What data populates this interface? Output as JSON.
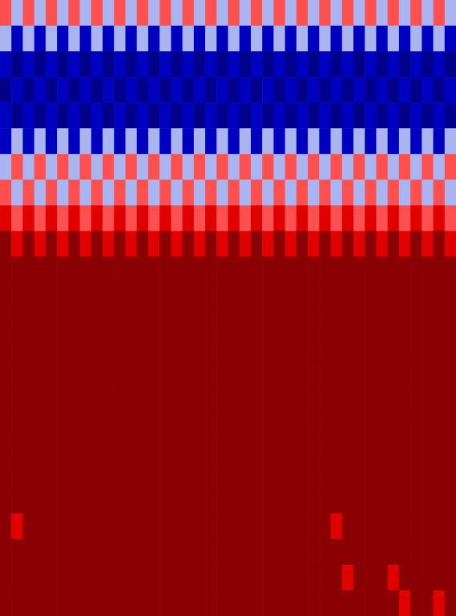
{
  "chart_data": {
    "type": "heatmap",
    "tick_labels": false,
    "levels": [
      -1,
      -0.8,
      -0.5,
      0,
      0.5,
      0.9,
      1
    ],
    "colors": [
      "#00008b",
      "#0000c0",
      "#aab4f0",
      "#ff5050",
      "#e00000",
      "#8b0000"
    ],
    "cells": [
      [
        0.3,
        -0.3,
        0.3,
        -0.3,
        0.3,
        -0.3,
        0.3,
        -0.3,
        0.3,
        -0.3,
        0.3,
        -0.3,
        0.3,
        -0.3,
        0.3,
        -0.3,
        0.3,
        -0.3,
        0.3,
        -0.3,
        0.3,
        -0.3,
        0.3,
        -0.3,
        0.3,
        -0.3,
        0.3,
        -0.3,
        0.3,
        -0.3,
        0.3,
        -0.3,
        0.3,
        -0.3,
        0.3,
        -0.3,
        0.3,
        -0.3,
        0.3,
        -0.3
      ],
      [
        -0.3,
        -0.7,
        -0.3,
        -0.7,
        -0.3,
        -0.7,
        -0.3,
        -0.7,
        -0.3,
        -0.7,
        -0.3,
        -0.7,
        -0.3,
        -0.7,
        -0.3,
        -0.7,
        -0.3,
        -0.7,
        -0.3,
        -0.7,
        -0.3,
        -0.7,
        -0.3,
        -0.7,
        -0.3,
        -0.7,
        -0.3,
        -0.7,
        -0.3,
        -0.7,
        -0.3,
        -0.7,
        -0.3,
        -0.7,
        -0.3,
        -0.7,
        -0.3,
        -0.7,
        -0.3,
        -0.7
      ],
      [
        -0.7,
        -0.9,
        -0.7,
        -0.9,
        -0.7,
        -0.9,
        -0.7,
        -0.9,
        -0.7,
        -0.9,
        -0.7,
        -0.9,
        -0.7,
        -0.9,
        -0.7,
        -0.9,
        -0.7,
        -0.9,
        -0.7,
        -0.9,
        -0.7,
        -0.9,
        -0.7,
        -0.9,
        -0.7,
        -0.9,
        -0.7,
        -0.9,
        -0.7,
        -0.9,
        -0.7,
        -0.9,
        -0.7,
        -0.9,
        -0.7,
        -0.9,
        -0.7,
        -0.9,
        -0.7,
        -0.9
      ],
      [
        -0.9,
        -0.7,
        -0.9,
        -0.7,
        -0.9,
        -0.7,
        -0.9,
        -0.7,
        -0.9,
        -0.7,
        -0.9,
        -0.7,
        -0.9,
        -0.7,
        -0.9,
        -0.7,
        -0.9,
        -0.7,
        -0.9,
        -0.7,
        -0.9,
        -0.7,
        -0.9,
        -0.7,
        -0.9,
        -0.7,
        -0.9,
        -0.7,
        -0.9,
        -0.7,
        -0.9,
        -0.7,
        -0.9,
        -0.7,
        -0.9,
        -0.7,
        -0.9,
        -0.7,
        -0.9,
        -0.7
      ],
      [
        -0.7,
        -0.9,
        -0.7,
        -0.9,
        -0.7,
        -0.9,
        -0.7,
        -0.9,
        -0.7,
        -0.9,
        -0.7,
        -0.9,
        -0.7,
        -0.9,
        -0.7,
        -0.9,
        -0.7,
        -0.9,
        -0.7,
        -0.9,
        -0.7,
        -0.9,
        -0.7,
        -0.9,
        -0.7,
        -0.9,
        -0.7,
        -0.9,
        -0.7,
        -0.9,
        -0.7,
        -0.9,
        -0.7,
        -0.9,
        -0.7,
        -0.9,
        -0.7,
        -0.9,
        -0.7,
        -0.9
      ],
      [
        -0.7,
        -0.3,
        -0.7,
        -0.3,
        -0.7,
        -0.3,
        -0.7,
        -0.3,
        -0.7,
        -0.3,
        -0.7,
        -0.3,
        -0.7,
        -0.3,
        -0.7,
        -0.3,
        -0.7,
        -0.3,
        -0.7,
        -0.3,
        -0.7,
        -0.3,
        -0.7,
        -0.3,
        -0.7,
        -0.3,
        -0.7,
        -0.3,
        -0.7,
        -0.3,
        -0.7,
        -0.3,
        -0.7,
        -0.3,
        -0.7,
        -0.3,
        -0.7,
        -0.3,
        -0.7,
        -0.3
      ],
      [
        -0.3,
        0.3,
        -0.3,
        0.3,
        -0.3,
        0.3,
        -0.3,
        0.3,
        -0.3,
        0.3,
        -0.3,
        0.3,
        -0.3,
        0.3,
        -0.3,
        0.3,
        -0.3,
        0.3,
        -0.3,
        0.3,
        -0.3,
        0.3,
        -0.3,
        0.3,
        -0.3,
        0.3,
        -0.3,
        0.3,
        -0.3,
        0.3,
        -0.3,
        0.3,
        -0.3,
        0.3,
        -0.3,
        0.3,
        -0.3,
        0.3,
        -0.3,
        0.3
      ],
      [
        0.3,
        -0.3,
        0.3,
        -0.3,
        0.3,
        -0.3,
        0.3,
        -0.3,
        0.3,
        -0.3,
        0.3,
        -0.3,
        0.3,
        -0.3,
        0.3,
        -0.3,
        0.3,
        -0.3,
        0.3,
        -0.3,
        0.3,
        -0.3,
        0.3,
        -0.3,
        0.3,
        -0.3,
        0.3,
        -0.3,
        0.3,
        -0.3,
        0.3,
        -0.3,
        0.3,
        -0.3,
        0.3,
        -0.3,
        0.3,
        -0.3,
        0.3,
        -0.3
      ],
      [
        0.7,
        0.3,
        0.7,
        0.3,
        0.7,
        0.3,
        0.7,
        0.3,
        0.7,
        0.3,
        0.7,
        0.3,
        0.7,
        0.3,
        0.7,
        0.3,
        0.7,
        0.3,
        0.7,
        0.3,
        0.7,
        0.3,
        0.7,
        0.3,
        0.7,
        0.3,
        0.7,
        0.3,
        0.7,
        0.3,
        0.7,
        0.3,
        0.7,
        0.3,
        0.7,
        0.3,
        0.7,
        0.3,
        0.7,
        0.3
      ],
      [
        1,
        0.7,
        1,
        0.7,
        1,
        0.7,
        1,
        0.7,
        1,
        0.7,
        1,
        0.7,
        1,
        0.7,
        1,
        0.7,
        1,
        0.7,
        1,
        0.7,
        1,
        0.7,
        1,
        0.7,
        1,
        0.7,
        1,
        0.7,
        1,
        0.7,
        1,
        0.7,
        1,
        0.7,
        1,
        0.7,
        1,
        0.7,
        1,
        0.7
      ],
      [
        1,
        1,
        1,
        1,
        1,
        1,
        1,
        1,
        1,
        1,
        1,
        1,
        1,
        1,
        1,
        1,
        1,
        1,
        1,
        1,
        1,
        1,
        1,
        1,
        1,
        1,
        1,
        1,
        1,
        1,
        1,
        1,
        1,
        1,
        1,
        1,
        1,
        1,
        1,
        1
      ],
      [
        1,
        1,
        1,
        1,
        1,
        1,
        1,
        1,
        1,
        1,
        1,
        1,
        1,
        1,
        1,
        1,
        1,
        1,
        1,
        1,
        1,
        1,
        1,
        1,
        1,
        1,
        1,
        1,
        1,
        1,
        1,
        1,
        1,
        1,
        1,
        1,
        1,
        1,
        1,
        1
      ],
      [
        1,
        1,
        1,
        1,
        1,
        1,
        1,
        1,
        1,
        1,
        1,
        1,
        1,
        1,
        1,
        1,
        1,
        1,
        1,
        1,
        1,
        1,
        1,
        1,
        1,
        1,
        1,
        1,
        1,
        1,
        1,
        1,
        1,
        1,
        1,
        1,
        1,
        1,
        1,
        1
      ],
      [
        1,
        1,
        1,
        1,
        1,
        1,
        1,
        1,
        1,
        1,
        1,
        1,
        1,
        1,
        1,
        1,
        1,
        1,
        1,
        1,
        1,
        1,
        1,
        1,
        1,
        1,
        1,
        1,
        1,
        1,
        1,
        1,
        1,
        1,
        1,
        1,
        1,
        1,
        1,
        1
      ],
      [
        1,
        1,
        1,
        1,
        1,
        1,
        1,
        1,
        1,
        1,
        1,
        1,
        1,
        1,
        1,
        1,
        1,
        1,
        1,
        1,
        1,
        1,
        1,
        1,
        1,
        1,
        1,
        1,
        1,
        1,
        1,
        1,
        1,
        1,
        1,
        1,
        1,
        1,
        1,
        1
      ],
      [
        1,
        1,
        1,
        1,
        1,
        1,
        1,
        1,
        1,
        1,
        1,
        1,
        1,
        1,
        1,
        1,
        1,
        1,
        1,
        1,
        1,
        1,
        1,
        1,
        1,
        1,
        1,
        1,
        1,
        1,
        1,
        1,
        1,
        1,
        1,
        1,
        1,
        1,
        1,
        1
      ],
      [
        1,
        1,
        1,
        1,
        1,
        1,
        1,
        1,
        1,
        1,
        1,
        1,
        1,
        1,
        1,
        1,
        1,
        1,
        1,
        1,
        1,
        1,
        1,
        1,
        1,
        1,
        1,
        1,
        1,
        1,
        1,
        1,
        1,
        1,
        1,
        1,
        1,
        1,
        1,
        1
      ],
      [
        1,
        1,
        1,
        1,
        1,
        1,
        1,
        1,
        1,
        1,
        1,
        1,
        1,
        1,
        1,
        1,
        1,
        1,
        1,
        1,
        1,
        1,
        1,
        1,
        1,
        1,
        1,
        1,
        1,
        1,
        1,
        1,
        1,
        1,
        1,
        1,
        1,
        1,
        1,
        1
      ],
      [
        1,
        1,
        1,
        1,
        1,
        1,
        1,
        1,
        1,
        1,
        1,
        1,
        1,
        1,
        1,
        1,
        1,
        1,
        1,
        1,
        1,
        1,
        1,
        1,
        1,
        1,
        1,
        1,
        1,
        1,
        1,
        1,
        1,
        1,
        1,
        1,
        1,
        1,
        1,
        1
      ],
      [
        1,
        1,
        1,
        1,
        1,
        1,
        1,
        1,
        1,
        1,
        1,
        1,
        1,
        1,
        1,
        1,
        1,
        1,
        1,
        1,
        1,
        1,
        1,
        1,
        1,
        1,
        1,
        1,
        1,
        1,
        1,
        1,
        1,
        1,
        1,
        1,
        1,
        1,
        1,
        1
      ],
      [
        1,
        0.7,
        1,
        1,
        1,
        1,
        1,
        1,
        1,
        1,
        1,
        1,
        1,
        1,
        1,
        1,
        1,
        1,
        1,
        1,
        1,
        1,
        1,
        1,
        1,
        1,
        1,
        1,
        1,
        0.7,
        1,
        1,
        1,
        1,
        1,
        1,
        1,
        1,
        1,
        1
      ],
      [
        1,
        1,
        1,
        1,
        1,
        1,
        1,
        1,
        1,
        1,
        1,
        1,
        1,
        1,
        1,
        1,
        1,
        1,
        1,
        1,
        1,
        1,
        1,
        1,
        1,
        1,
        1,
        1,
        1,
        1,
        1,
        1,
        1,
        1,
        1,
        1,
        1,
        1,
        1,
        1
      ],
      [
        1,
        1,
        1,
        1,
        1,
        1,
        1,
        1,
        1,
        1,
        1,
        1,
        1,
        1,
        1,
        1,
        1,
        1,
        1,
        1,
        1,
        1,
        1,
        1,
        1,
        1,
        1,
        1,
        1,
        1,
        0.7,
        1,
        1,
        1,
        0.7,
        1,
        1,
        1,
        1,
        1
      ],
      [
        1,
        1,
        1,
        1,
        1,
        1,
        1,
        1,
        1,
        1,
        1,
        1,
        1,
        1,
        1,
        1,
        1,
        1,
        1,
        1,
        1,
        1,
        1,
        1,
        1,
        1,
        1,
        1,
        1,
        1,
        1,
        1,
        1,
        1,
        1,
        0.7,
        1,
        1,
        0.7,
        1
      ]
    ]
  }
}
